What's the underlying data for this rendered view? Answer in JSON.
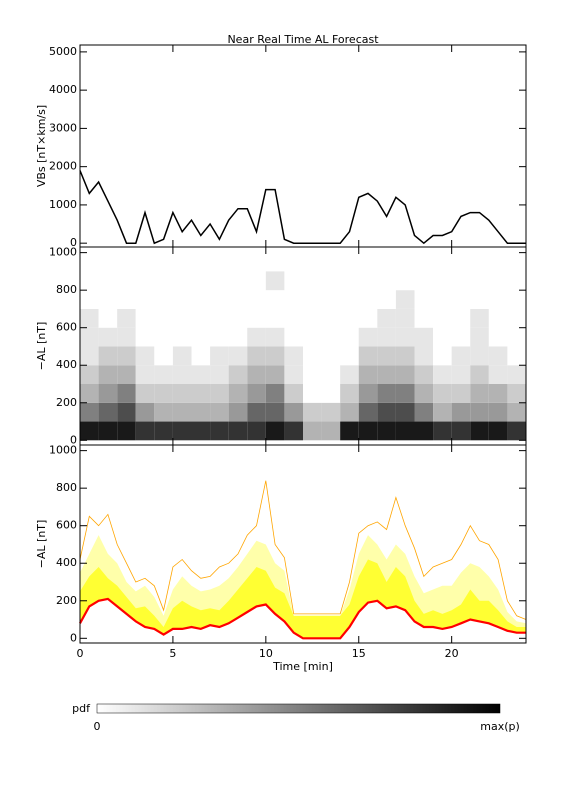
{
  "chart_data": [
    {
      "type": "line",
      "title": "Near Real Time AL Forecast",
      "ylabel": "VBs [nT×km/s]",
      "xlim": [
        0,
        24
      ],
      "xticks": [
        0,
        5,
        10,
        15,
        20
      ],
      "xtick_labels": false,
      "ylim": [
        -100,
        5180
      ],
      "yticks": [
        0,
        1000,
        2000,
        3000,
        4000,
        5000
      ],
      "x": [
        0,
        0.5,
        1,
        1.5,
        2,
        2.5,
        3,
        3.5,
        4,
        4.5,
        5,
        5.5,
        6,
        6.5,
        7,
        7.5,
        8,
        8.5,
        9,
        9.5,
        10,
        10.5,
        11,
        11.5,
        12,
        12.5,
        13,
        13.5,
        14,
        14.5,
        15,
        15.5,
        16,
        16.5,
        17,
        17.5,
        18,
        18.5,
        19,
        19.5,
        20,
        20.5,
        21,
        21.5,
        22,
        22.5,
        23,
        23.5,
        24
      ],
      "series": [
        {
          "color": "#000000",
          "style": "line",
          "values": [
            1900,
            1300,
            1600,
            1100,
            600,
            0,
            0,
            800,
            0,
            100,
            800,
            300,
            600,
            200,
            500,
            100,
            600,
            900,
            900,
            300,
            1400,
            1400,
            100,
            0,
            0,
            0,
            0,
            0,
            0,
            300,
            1200,
            1300,
            1100,
            700,
            1200,
            1000,
            200,
            0,
            200,
            200,
            300,
            700,
            800,
            800,
            600,
            300,
            0,
            0,
            0
          ]
        }
      ]
    },
    {
      "type": "heatmap",
      "ylabel": "−AL [nT]",
      "xlim": [
        0,
        24
      ],
      "xticks": [
        0,
        5,
        10,
        15,
        20
      ],
      "xtick_labels": false,
      "ylim": [
        -25,
        1030
      ],
      "yticks": [
        0,
        200,
        400,
        600,
        800,
        1000
      ],
      "xbins": [
        0,
        1,
        2,
        3,
        4,
        5,
        6,
        7,
        8,
        9,
        10,
        11,
        12,
        13,
        14,
        15,
        16,
        17,
        18,
        19,
        20,
        21,
        22,
        23,
        24
      ],
      "ybins": [
        0,
        100,
        200,
        300,
        400,
        500,
        600,
        700,
        800,
        900
      ],
      "z": [
        [
          0.9,
          0.9,
          0.9,
          0.8,
          0.8,
          0.8,
          0.8,
          0.8,
          0.8,
          0.8,
          0.9,
          0.8,
          0.3,
          0.3,
          0.9,
          0.9,
          0.9,
          0.9,
          0.9,
          0.8,
          0.8,
          0.9,
          0.9,
          0.8
        ],
        [
          0.5,
          0.6,
          0.7,
          0.4,
          0.3,
          0.3,
          0.3,
          0.3,
          0.4,
          0.6,
          0.6,
          0.4,
          0.2,
          0.2,
          0.3,
          0.6,
          0.7,
          0.7,
          0.5,
          0.3,
          0.4,
          0.4,
          0.4,
          0.3
        ],
        [
          0.3,
          0.4,
          0.5,
          0.2,
          0.2,
          0.2,
          0.2,
          0.2,
          0.3,
          0.4,
          0.5,
          0.2,
          0,
          0,
          0.2,
          0.4,
          0.5,
          0.5,
          0.3,
          0.2,
          0.2,
          0.3,
          0.3,
          0.2
        ],
        [
          0.2,
          0.3,
          0.3,
          0.1,
          0.1,
          0.1,
          0.1,
          0.1,
          0.2,
          0.3,
          0.3,
          0.1,
          0,
          0,
          0.1,
          0.3,
          0.3,
          0.3,
          0.2,
          0.1,
          0.1,
          0.2,
          0.1,
          0.1
        ],
        [
          0.1,
          0.2,
          0.2,
          0.1,
          0,
          0.1,
          0,
          0.1,
          0.1,
          0.2,
          0.2,
          0.1,
          0,
          0,
          0,
          0.2,
          0.2,
          0.2,
          0.1,
          0,
          0.1,
          0.1,
          0.1,
          0
        ],
        [
          0.1,
          0.1,
          0.1,
          0,
          0,
          0,
          0,
          0,
          0,
          0.1,
          0.1,
          0,
          0,
          0,
          0,
          0.1,
          0.1,
          0.1,
          0.1,
          0,
          0,
          0.1,
          0,
          0
        ],
        [
          0.1,
          0,
          0.1,
          0,
          0,
          0,
          0,
          0,
          0,
          0,
          0,
          0,
          0,
          0,
          0,
          0,
          0.1,
          0.1,
          0,
          0,
          0,
          0.1,
          0,
          0
        ],
        [
          0,
          0,
          0,
          0,
          0,
          0,
          0,
          0,
          0,
          0,
          0,
          0,
          0,
          0,
          0,
          0,
          0,
          0.1,
          0,
          0,
          0,
          0,
          0,
          0
        ],
        [
          0,
          0,
          0,
          0,
          0,
          0,
          0,
          0,
          0,
          0,
          0.1,
          0,
          0,
          0,
          0,
          0,
          0,
          0,
          0,
          0,
          0,
          0,
          0,
          0
        ]
      ]
    },
    {
      "type": "area",
      "ylabel": "−AL [nT]",
      "xlabel": "Time [min]",
      "xlim": [
        0,
        24
      ],
      "xticks": [
        0,
        5,
        10,
        15,
        20
      ],
      "xtick_labels": true,
      "ylim": [
        -25,
        1030
      ],
      "yticks": [
        0,
        200,
        400,
        600,
        800,
        1000
      ],
      "x": [
        0,
        0.5,
        1,
        1.5,
        2,
        2.5,
        3,
        3.5,
        4,
        4.5,
        5,
        5.5,
        6,
        6.5,
        7,
        7.5,
        8,
        8.5,
        9,
        9.5,
        10,
        10.5,
        11,
        11.5,
        12,
        12.5,
        13,
        13.5,
        14,
        14.5,
        15,
        15.5,
        16,
        16.5,
        17,
        17.5,
        18,
        18.5,
        19,
        19.5,
        20,
        20.5,
        21,
        21.5,
        22,
        22.5,
        23,
        23.5,
        24
      ],
      "series": [
        {
          "color": "#ffffaa",
          "style": "area",
          "base": 3,
          "values": [
            350,
            450,
            550,
            450,
            400,
            300,
            250,
            280,
            220,
            120,
            260,
            330,
            280,
            250,
            260,
            280,
            320,
            380,
            450,
            520,
            500,
            400,
            360,
            120,
            120,
            120,
            120,
            120,
            120,
            260,
            450,
            550,
            500,
            420,
            500,
            450,
            330,
            240,
            260,
            280,
            280,
            350,
            400,
            380,
            330,
            260,
            140,
            90,
            80
          ]
        },
        {
          "color": "#ffff33",
          "style": "area",
          "base": 3,
          "values": [
            250,
            330,
            380,
            320,
            280,
            220,
            160,
            170,
            120,
            60,
            160,
            200,
            170,
            150,
            160,
            150,
            200,
            260,
            320,
            380,
            360,
            270,
            240,
            120,
            120,
            120,
            120,
            120,
            120,
            180,
            330,
            420,
            400,
            300,
            380,
            330,
            200,
            130,
            150,
            130,
            150,
            180,
            260,
            200,
            200,
            150,
            90,
            60,
            60
          ]
        },
        {
          "color": "#ffa500",
          "style": "line",
          "values": [
            420,
            650,
            600,
            660,
            500,
            400,
            300,
            320,
            280,
            150,
            380,
            420,
            360,
            320,
            330,
            380,
            400,
            450,
            550,
            600,
            840,
            500,
            430,
            130,
            130,
            130,
            130,
            130,
            130,
            300,
            560,
            600,
            620,
            580,
            750,
            600,
            480,
            330,
            380,
            400,
            420,
            500,
            600,
            520,
            500,
            420,
            200,
            120,
            100
          ]
        },
        {
          "color": "#ff0000",
          "style": "line",
          "values": [
            80,
            170,
            200,
            210,
            170,
            130,
            90,
            60,
            50,
            20,
            50,
            50,
            60,
            50,
            70,
            60,
            80,
            110,
            140,
            170,
            180,
            130,
            90,
            30,
            0,
            0,
            0,
            0,
            0,
            60,
            140,
            190,
            200,
            160,
            170,
            150,
            90,
            60,
            60,
            50,
            60,
            80,
            100,
            90,
            80,
            60,
            40,
            30,
            30
          ]
        }
      ]
    }
  ],
  "colorbar": {
    "label": "pdf",
    "min_label": "0",
    "max_label": "max(p)"
  }
}
